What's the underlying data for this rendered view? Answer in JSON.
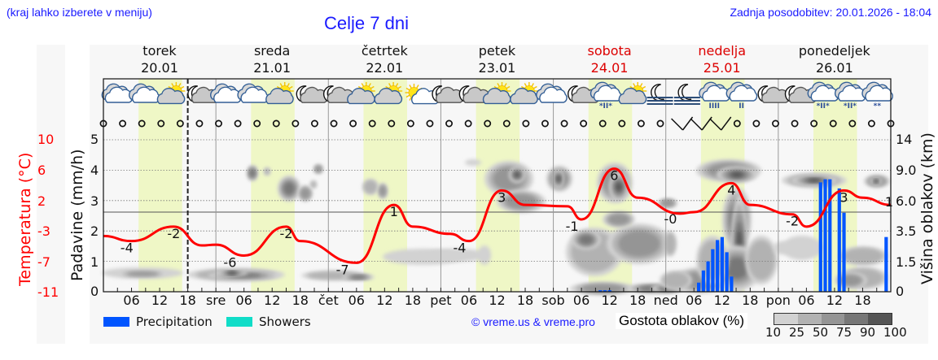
{
  "header": {
    "region_hint": "(kraj lahko izberete v meniju)",
    "title": "Celje 7 dni",
    "last_update": "Zadnja posodobitev: 20.01.2026 - 18:04"
  },
  "days": [
    {
      "name": "torek",
      "date": "20.01",
      "weekend": false
    },
    {
      "name": "sreda",
      "date": "21.01",
      "weekend": false
    },
    {
      "name": "četrtek",
      "date": "22.01",
      "weekend": false
    },
    {
      "name": "petek",
      "date": "23.01",
      "weekend": false
    },
    {
      "name": "sobota",
      "date": "24.01",
      "weekend": true
    },
    {
      "name": "nedelja",
      "date": "25.01",
      "weekend": true
    },
    {
      "name": "ponedeljek",
      "date": "26.01",
      "weekend": false
    }
  ],
  "axes": {
    "temperature_label": "Temperatura (°C)",
    "temperature_ticks": [
      "10",
      "6",
      "2",
      "-3",
      "-7",
      "-11"
    ],
    "precip_label": "Padavine (mm/h)",
    "precip_ticks": [
      "5",
      "4",
      "3",
      "2",
      "1",
      "0"
    ],
    "cloud_height_label": "Višina oblakov (km)",
    "cloud_height_ticks": [
      "14",
      "9.0",
      "6.0",
      "3.5",
      "1.5",
      "0"
    ],
    "x_ticks": [
      "06",
      "12",
      "18",
      "sre",
      "06",
      "12",
      "18",
      "čet",
      "06",
      "12",
      "18",
      "pet",
      "06",
      "12",
      "18",
      "sob",
      "06",
      "12",
      "18",
      "ned",
      "06",
      "12",
      "18",
      "pon",
      "06",
      "12",
      "18"
    ]
  },
  "legend": {
    "precipitation": {
      "label": "Precipitation",
      "color": "#0055ff"
    },
    "showers": {
      "label": "Showers",
      "color": "#11ddc8"
    },
    "copyright": "© vreme.us & vreme.pro",
    "cloud_density_label": "Gostota oblakov (%)",
    "cloud_density_ticks": [
      "10",
      "25",
      "50",
      "75",
      "90",
      "100"
    ],
    "cloud_density_colors": [
      "#d2d2d2",
      "#b2b2b2",
      "#959595",
      "#777777",
      "#555555"
    ]
  },
  "icons": [
    "cloudy",
    "cloudy",
    "partly-sunny",
    "night-cloudy",
    "cloudy",
    "cloudy",
    "partly-sunny",
    "night-cloudy",
    "night-cloudy",
    "partly-sunny",
    "partly-sunny",
    "mostly-sunny",
    "night-cloudy",
    "night-cloudy",
    "partly-sunny",
    "partly-sunny",
    "cloudy",
    "night-cloudy",
    "sleet",
    "partly-sunny",
    "night-fog",
    "night-fog",
    "rain-heavy",
    "rain-light",
    "night-cloudy",
    "night-cloudy",
    "sleet",
    "sleet",
    "snow-light"
  ],
  "chart_data": {
    "type": "line",
    "title": "Celje 7 dni",
    "xlabel": "",
    "ylabel": "Temperatura (°C)",
    "x_start": "20.01 00:00",
    "x_end": "27.01 00:00",
    "now_marker": "20.01 18:00",
    "temperature_series": {
      "name": "Temperatura (°C)",
      "color": "#ff0000",
      "points": [
        {
          "t": "20.01 00",
          "v": -3.3
        },
        {
          "t": "20.01 06",
          "v": -4.0
        },
        {
          "t": "20.01 15",
          "v": -2.0
        },
        {
          "t": "20.01 21",
          "v": -4.6
        },
        {
          "t": "21.01 00",
          "v": -4.5
        },
        {
          "t": "21.01 06",
          "v": -6.0
        },
        {
          "t": "21.01 15",
          "v": -2.0
        },
        {
          "t": "21.01 18",
          "v": -4.0
        },
        {
          "t": "22.01 06",
          "v": -7.0
        },
        {
          "t": "22.01 14",
          "v": 1.0
        },
        {
          "t": "22.01 18",
          "v": -2.0
        },
        {
          "t": "23.01 02",
          "v": -3.0
        },
        {
          "t": "23.01 06",
          "v": -4.0
        },
        {
          "t": "23.01 13",
          "v": 3.0
        },
        {
          "t": "23.01 18",
          "v": 1.0
        },
        {
          "t": "24.01 03",
          "v": 0.8
        },
        {
          "t": "24.01 06",
          "v": -1.0
        },
        {
          "t": "24.01 13",
          "v": 6.0
        },
        {
          "t": "24.01 18",
          "v": 2.0
        },
        {
          "t": "25.01 03",
          "v": -0.2
        },
        {
          "t": "25.01 06",
          "v": 0.0
        },
        {
          "t": "25.01 14",
          "v": 4.0
        },
        {
          "t": "25.01 18",
          "v": 1.0
        },
        {
          "t": "26.01 03",
          "v": -0.3
        },
        {
          "t": "26.01 06",
          "v": -2.0
        },
        {
          "t": "26.01 14",
          "v": 3.0
        },
        {
          "t": "26.01 18",
          "v": 2.0
        },
        {
          "t": "27.01 00",
          "v": 1.0
        }
      ],
      "labels": [
        {
          "t": "20.01 05",
          "v": "-4"
        },
        {
          "t": "20.01 15",
          "v": "-2"
        },
        {
          "t": "21.01 03",
          "v": "-6"
        },
        {
          "t": "21.01 15",
          "v": "-2"
        },
        {
          "t": "22.01 03",
          "v": "-7"
        },
        {
          "t": "22.01 14",
          "v": "1"
        },
        {
          "t": "23.01 04",
          "v": "-4"
        },
        {
          "t": "23.01 13",
          "v": "3"
        },
        {
          "t": "24.01 04",
          "v": "-1"
        },
        {
          "t": "24.01 13",
          "v": "6"
        },
        {
          "t": "25.01 01",
          "v": "-0"
        },
        {
          "t": "25.01 14",
          "v": "4"
        },
        {
          "t": "26.01 03",
          "v": "-2"
        },
        {
          "t": "26.01 14",
          "v": "3"
        },
        {
          "t": "27.01 00",
          "v": "1"
        }
      ]
    },
    "precipitation_series": {
      "name": "Precipitation (mm/h)",
      "color": "#0055ff",
      "bars": [
        {
          "t": "24.01 10",
          "v": 0.05
        },
        {
          "t": "24.01 11",
          "v": 0.05
        },
        {
          "t": "24.01 12",
          "v": 0.05
        },
        {
          "t": "25.01 07",
          "v": 0.3
        },
        {
          "t": "25.01 08",
          "v": 0.7
        },
        {
          "t": "25.01 09",
          "v": 1.0
        },
        {
          "t": "25.01 10",
          "v": 1.4
        },
        {
          "t": "25.01 11",
          "v": 1.7
        },
        {
          "t": "25.01 12",
          "v": 1.8
        },
        {
          "t": "25.01 13",
          "v": 1.3
        },
        {
          "t": "25.01 14",
          "v": 0.5
        },
        {
          "t": "26.01 09",
          "v": 3.6
        },
        {
          "t": "26.01 10",
          "v": 3.7
        },
        {
          "t": "26.01 11",
          "v": 3.7
        },
        {
          "t": "26.01 13",
          "v": 3.4
        },
        {
          "t": "26.01 14",
          "v": 2.6
        },
        {
          "t": "26.01 23",
          "v": 1.8
        }
      ]
    },
    "precip_ylim": [
      0,
      5
    ],
    "temperature_ylim": [
      -11,
      10
    ],
    "cloud_height_ylim_km": [
      0,
      14
    ],
    "grid": true,
    "legend_position": "bottom"
  }
}
